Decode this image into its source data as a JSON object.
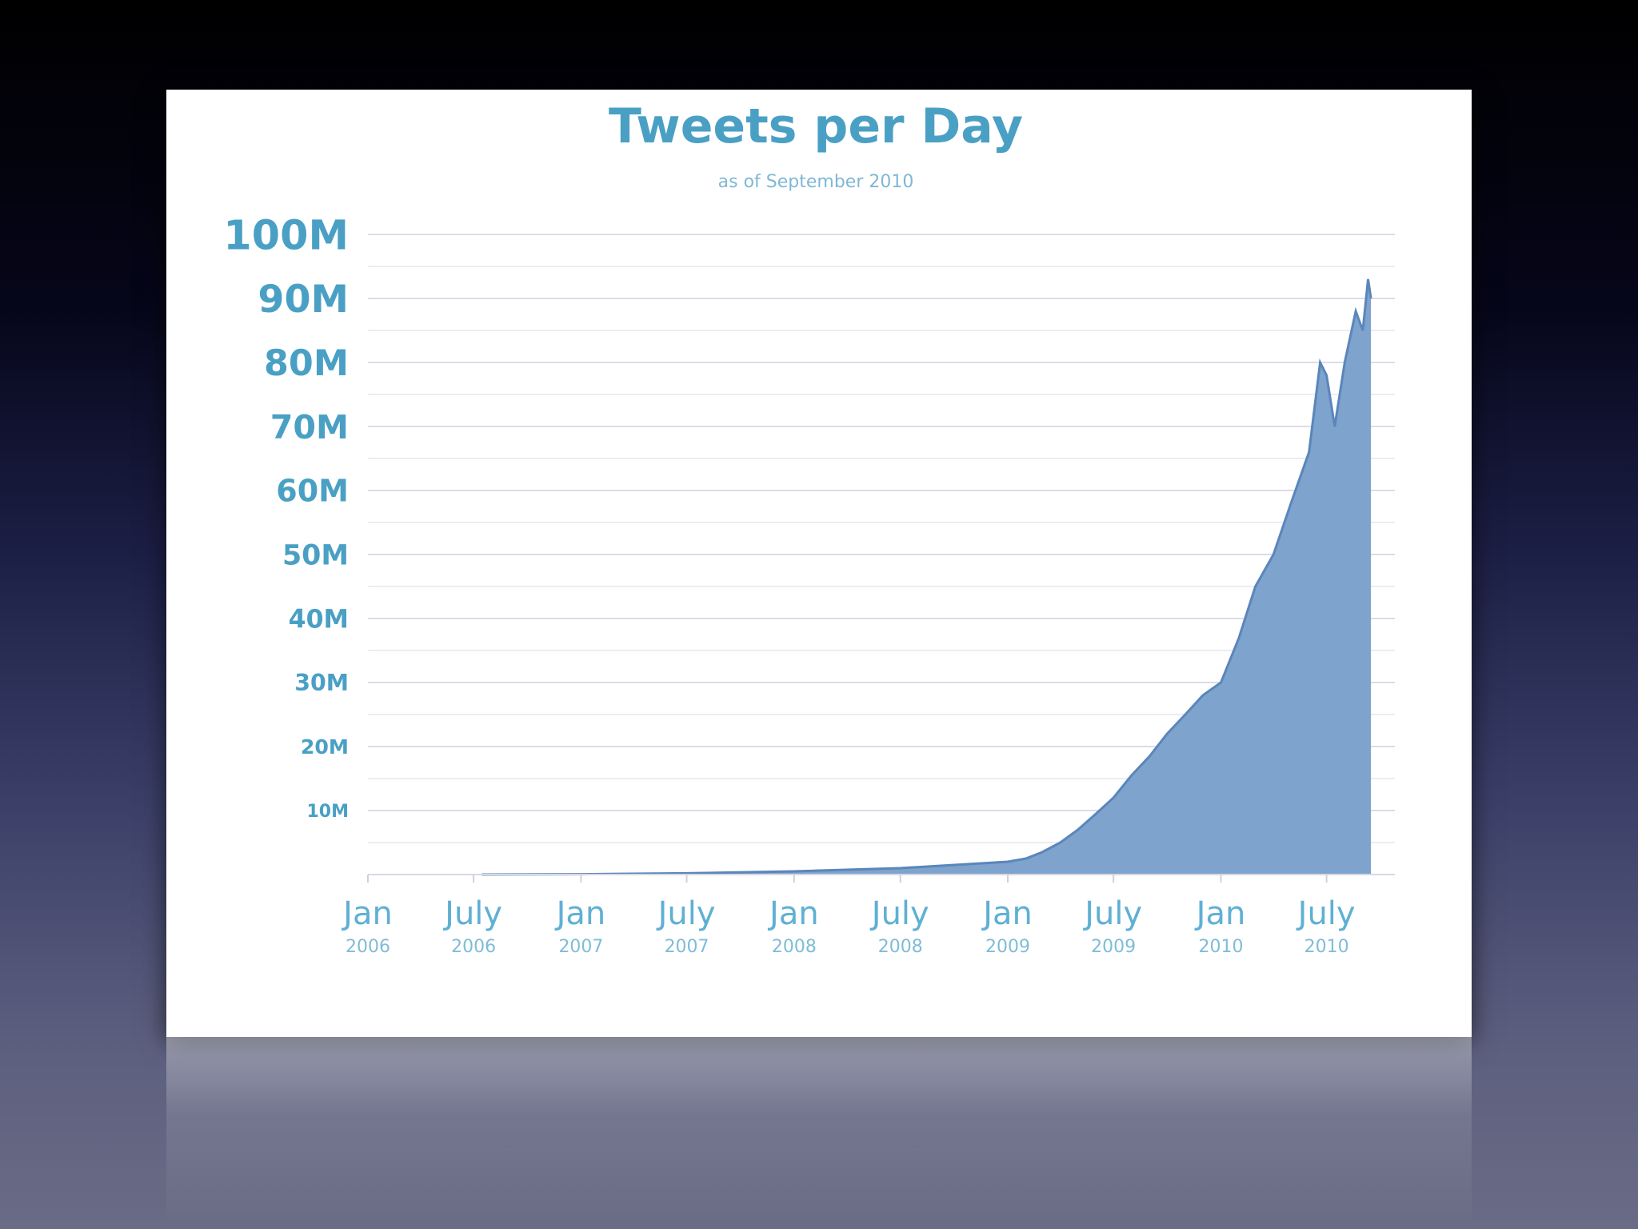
{
  "chart_data": {
    "type": "area",
    "title": "Tweets per Day",
    "subtitle": "as of September 2010",
    "ylim": [
      0,
      100000000
    ],
    "y_ticks": [
      {
        "value": 10000000,
        "label": "10M"
      },
      {
        "value": 20000000,
        "label": "20M"
      },
      {
        "value": 30000000,
        "label": "30M"
      },
      {
        "value": 40000000,
        "label": "40M"
      },
      {
        "value": 50000000,
        "label": "50M"
      },
      {
        "value": 60000000,
        "label": "60M"
      },
      {
        "value": 70000000,
        "label": "70M"
      },
      {
        "value": 80000000,
        "label": "80M"
      },
      {
        "value": 90000000,
        "label": "90M"
      },
      {
        "value": 100000000,
        "label": "100M"
      }
    ],
    "xlim": [
      "2006-01-01",
      "2010-10-15"
    ],
    "x_ticks": [
      {
        "date": "2006-01-01",
        "month": "Jan",
        "year": "2006"
      },
      {
        "date": "2006-07-01",
        "month": "July",
        "year": "2006"
      },
      {
        "date": "2007-01-01",
        "month": "Jan",
        "year": "2007"
      },
      {
        "date": "2007-07-01",
        "month": "July",
        "year": "2007"
      },
      {
        "date": "2008-01-01",
        "month": "Jan",
        "year": "2008"
      },
      {
        "date": "2008-07-01",
        "month": "July",
        "year": "2008"
      },
      {
        "date": "2009-01-01",
        "month": "Jan",
        "year": "2009"
      },
      {
        "date": "2009-07-01",
        "month": "July",
        "year": "2009"
      },
      {
        "date": "2010-01-01",
        "month": "Jan",
        "year": "2010"
      },
      {
        "date": "2010-07-01",
        "month": "July",
        "year": "2010"
      }
    ],
    "grid": true,
    "series": [
      {
        "color": "#7ea3cc",
        "line_color": "#5a86bb",
        "points": [
          {
            "x": "2006-07-15",
            "y": 0
          },
          {
            "x": "2007-01-01",
            "y": 50000
          },
          {
            "x": "2007-07-01",
            "y": 200000
          },
          {
            "x": "2008-01-01",
            "y": 500000
          },
          {
            "x": "2008-07-01",
            "y": 1000000
          },
          {
            "x": "2008-10-01",
            "y": 1500000
          },
          {
            "x": "2009-01-01",
            "y": 2000000
          },
          {
            "x": "2009-02-01",
            "y": 2500000
          },
          {
            "x": "2009-03-01",
            "y": 3500000
          },
          {
            "x": "2009-04-01",
            "y": 5000000
          },
          {
            "x": "2009-05-01",
            "y": 7000000
          },
          {
            "x": "2009-06-01",
            "y": 9500000
          },
          {
            "x": "2009-07-01",
            "y": 12000000
          },
          {
            "x": "2009-08-01",
            "y": 15500000
          },
          {
            "x": "2009-09-01",
            "y": 18500000
          },
          {
            "x": "2009-10-01",
            "y": 22000000
          },
          {
            "x": "2009-11-01",
            "y": 25000000
          },
          {
            "x": "2009-12-01",
            "y": 28000000
          },
          {
            "x": "2010-01-01",
            "y": 30000000
          },
          {
            "x": "2010-02-01",
            "y": 37000000
          },
          {
            "x": "2010-03-01",
            "y": 45000000
          },
          {
            "x": "2010-04-01",
            "y": 50000000
          },
          {
            "x": "2010-05-01",
            "y": 58000000
          },
          {
            "x": "2010-06-01",
            "y": 66000000
          },
          {
            "x": "2010-06-20",
            "y": 80000000
          },
          {
            "x": "2010-07-01",
            "y": 78000000
          },
          {
            "x": "2010-07-15",
            "y": 70000000
          },
          {
            "x": "2010-08-01",
            "y": 80000000
          },
          {
            "x": "2010-08-20",
            "y": 88000000
          },
          {
            "x": "2010-09-01",
            "y": 85000000
          },
          {
            "x": "2010-09-10",
            "y": 93000000
          },
          {
            "x": "2010-09-15",
            "y": 90000000
          }
        ]
      }
    ]
  }
}
